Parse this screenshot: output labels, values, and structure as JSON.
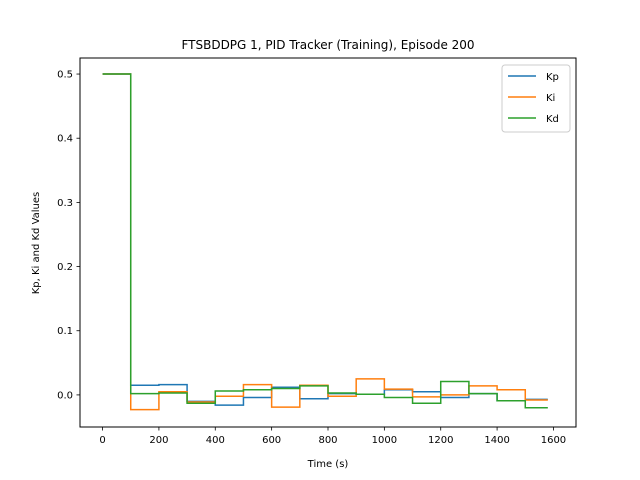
{
  "chart_data": {
    "type": "line",
    "step": "post",
    "title": "FTSBDDPG 1, PID Tracker (Training), Episode 200",
    "xlabel": "Time (s)",
    "ylabel": "Kp, Ki and Kd Values",
    "xlim": [
      -80,
      1680
    ],
    "ylim": [
      -0.05,
      0.525
    ],
    "xticks": [
      0,
      200,
      400,
      600,
      800,
      1000,
      1200,
      1400,
      1600
    ],
    "yticks": [
      0.0,
      0.1,
      0.2,
      0.3,
      0.4,
      0.5
    ],
    "xtick_labels": [
      "0",
      "200",
      "400",
      "600",
      "800",
      "1000",
      "1200",
      "1400",
      "1600"
    ],
    "ytick_labels": [
      "0.0",
      "0.1",
      "0.2",
      "0.3",
      "0.4",
      "0.5"
    ],
    "grid": false,
    "legend": "top-right",
    "x": [
      0,
      100,
      200,
      300,
      400,
      500,
      600,
      700,
      800,
      900,
      1000,
      1100,
      1200,
      1300,
      1400,
      1500,
      1580
    ],
    "series": [
      {
        "name": "Kp",
        "color": "#1f77b4",
        "values": [
          0.5,
          0.015,
          0.016,
          -0.01,
          -0.016,
          -0.004,
          0.012,
          -0.006,
          0.002,
          0.001,
          0.008,
          0.005,
          -0.004,
          0.002,
          -0.009,
          -0.007,
          -0.007
        ]
      },
      {
        "name": "Ki",
        "color": "#ff7f0e",
        "values": [
          0.5,
          -0.023,
          0.005,
          -0.011,
          -0.002,
          0.016,
          -0.019,
          0.015,
          -0.002,
          0.025,
          0.009,
          -0.003,
          0.0,
          0.014,
          0.008,
          -0.008,
          -0.008
        ]
      },
      {
        "name": "Kd",
        "color": "#2ca02c",
        "values": [
          0.5,
          0.002,
          0.003,
          -0.013,
          0.006,
          0.008,
          0.01,
          0.014,
          0.003,
          0.001,
          -0.004,
          -0.013,
          0.021,
          0.002,
          -0.009,
          -0.02,
          -0.02
        ]
      }
    ]
  }
}
